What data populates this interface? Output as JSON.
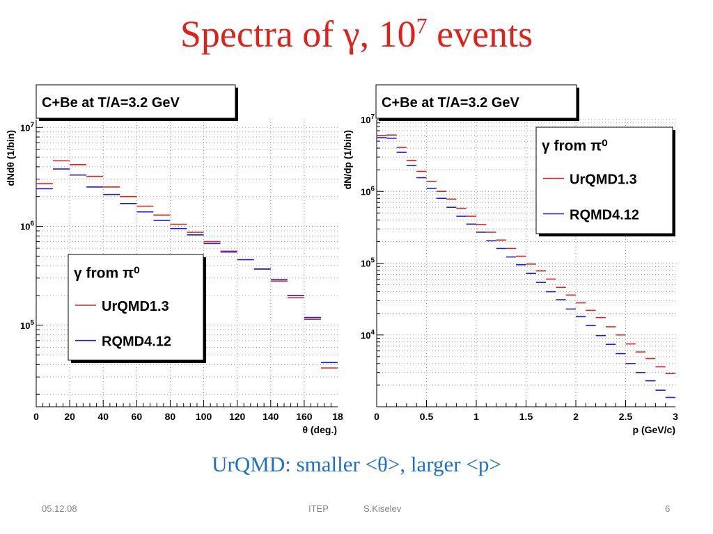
{
  "slide": {
    "title_main": "Spectra of γ, 10",
    "title_exp": "7",
    "title_tail": " events",
    "subtitle": "UrQMD: smaller <θ>, larger <p>"
  },
  "footer": {
    "date": "05.12.08",
    "org": "ITEP",
    "author": "S.Kiselev",
    "page": "6"
  },
  "colors": {
    "urqmd": "#e0201b",
    "rqmd": "#1a1ae6",
    "title": "#e0201b",
    "subtitle": "#1f6fc3"
  },
  "chart_data": [
    {
      "type": "line",
      "title": "C+Be at T/A=3.2 GeV",
      "xlabel": "θ (deg.)",
      "ylabel": "dNdθ (1/bin)",
      "xlim": [
        0,
        180
      ],
      "ylim": [
        15000,
        12000000
      ],
      "log_y": true,
      "grid": true,
      "x_ticks": [
        "0",
        "20",
        "40",
        "60",
        "80",
        "100",
        "120",
        "140",
        "160",
        "18"
      ],
      "y_ticks": [
        {
          "base": "10",
          "exp": "5"
        },
        {
          "base": "10",
          "exp": "6"
        },
        {
          "base": "10",
          "exp": "7"
        }
      ],
      "legend": {
        "title": "γ from π⁰",
        "position": "bottom-left"
      },
      "bins": [
        [
          0,
          10
        ],
        [
          10,
          20
        ],
        [
          20,
          30
        ],
        [
          30,
          40
        ],
        [
          40,
          50
        ],
        [
          50,
          60
        ],
        [
          60,
          70
        ],
        [
          70,
          80
        ],
        [
          80,
          90
        ],
        [
          90,
          100
        ],
        [
          100,
          110
        ],
        [
          110,
          120
        ],
        [
          120,
          130
        ],
        [
          130,
          140
        ],
        [
          140,
          150
        ],
        [
          150,
          160
        ],
        [
          160,
          170
        ],
        [
          170,
          180
        ]
      ],
      "series": [
        {
          "name": "UrQMD1.3",
          "values": [
            2700000,
            4600000,
            4200000,
            3200000,
            2500000,
            2000000,
            1600000,
            1300000,
            1050000,
            870000,
            700000,
            560000,
            460000,
            370000,
            280000,
            190000,
            115000,
            37000
          ]
        },
        {
          "name": "RQMD4.12",
          "values": [
            2400000,
            3800000,
            3300000,
            2500000,
            2100000,
            1700000,
            1400000,
            1150000,
            950000,
            820000,
            670000,
            550000,
            460000,
            370000,
            290000,
            200000,
            120000,
            42000
          ]
        }
      ]
    },
    {
      "type": "line",
      "title": "C+Be at T/A=3.2 GeV",
      "xlabel": "p (GeV/c)",
      "ylabel": "dN/dp (1/bin)",
      "xlim": [
        0,
        3
      ],
      "ylim": [
        1000,
        10000000
      ],
      "log_y": true,
      "grid": true,
      "x_ticks": [
        "0",
        "0.5",
        "1",
        "1.5",
        "2",
        "2.5",
        "3"
      ],
      "y_ticks": [
        {
          "base": "10",
          "exp": "4"
        },
        {
          "base": "10",
          "exp": "5"
        },
        {
          "base": "10",
          "exp": "6"
        },
        {
          "base": "10",
          "exp": "7"
        }
      ],
      "legend": {
        "title": "γ from π⁰",
        "position": "top-right"
      },
      "bins": [
        [
          0,
          0.1
        ],
        [
          0.1,
          0.2
        ],
        [
          0.2,
          0.3
        ],
        [
          0.3,
          0.4
        ],
        [
          0.4,
          0.5
        ],
        [
          0.5,
          0.6
        ],
        [
          0.6,
          0.7
        ],
        [
          0.7,
          0.8
        ],
        [
          0.8,
          0.9
        ],
        [
          0.9,
          1.0
        ],
        [
          1.0,
          1.1
        ],
        [
          1.1,
          1.2
        ],
        [
          1.2,
          1.3
        ],
        [
          1.3,
          1.4
        ],
        [
          1.4,
          1.5
        ],
        [
          1.5,
          1.6
        ],
        [
          1.6,
          1.7
        ],
        [
          1.7,
          1.8
        ],
        [
          1.8,
          1.9
        ],
        [
          1.9,
          2.0
        ],
        [
          2.0,
          2.1
        ],
        [
          2.1,
          2.2
        ],
        [
          2.2,
          2.3
        ],
        [
          2.3,
          2.4
        ],
        [
          2.4,
          2.5
        ],
        [
          2.5,
          2.6
        ],
        [
          2.6,
          2.7
        ],
        [
          2.7,
          2.8
        ],
        [
          2.8,
          2.9
        ],
        [
          2.9,
          3.0
        ]
      ],
      "series": [
        {
          "name": "UrQMD1.3",
          "values": [
            6000000,
            6100000,
            4100000,
            2700000,
            1900000,
            1380000,
            1000000,
            780000,
            580000,
            450000,
            345000,
            270000,
            210000,
            160000,
            125000,
            97000,
            78000,
            60000,
            46000,
            36000,
            28000,
            22000,
            17500,
            13000,
            10000,
            7500,
            5800,
            4700,
            3600,
            2900
          ]
        },
        {
          "name": "RQMD4.12",
          "values": [
            5600000,
            5500000,
            3500000,
            2300000,
            1550000,
            1100000,
            800000,
            600000,
            450000,
            350000,
            270000,
            205000,
            160000,
            122000,
            95000,
            72000,
            54000,
            40000,
            31000,
            23000,
            18000,
            13500,
            9800,
            7400,
            5500,
            4000,
            3000,
            2300,
            1700,
            1350
          ]
        }
      ]
    }
  ]
}
